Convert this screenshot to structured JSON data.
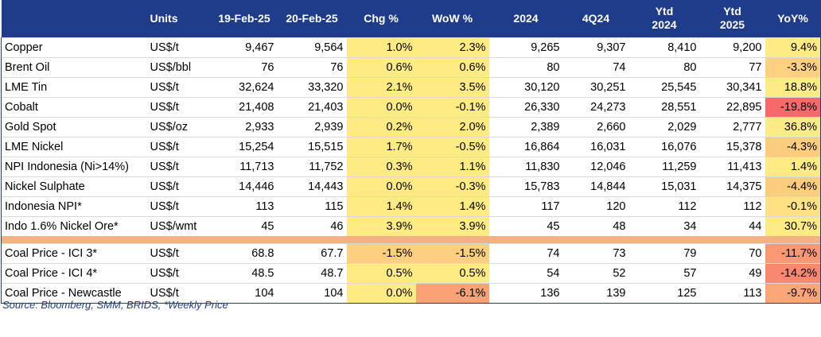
{
  "headers": [
    "",
    "Units",
    "19-Feb-25",
    "20-Feb-25",
    "Chg %",
    "WoW %",
    "2024",
    "4Q24",
    "Ytd 2024",
    "Ytd 2025",
    "YoY%"
  ],
  "colors": {
    "header_bg": "#1f3c8b",
    "separator": "#f4b183",
    "yellow": "#ffeb84",
    "light_orange": "#ffd27f",
    "orange": "#fcb37b",
    "salmon": "#f8a275",
    "red": "#f8696b"
  },
  "rows": [
    {
      "name": "Copper",
      "unit": "US$/t",
      "v1": "9,467",
      "v2": "9,564",
      "chg": "1.0%",
      "wow": "2.3%",
      "y2024": "9,265",
      "q4": "9,307",
      "ytd24": "8,410",
      "ytd25": "9,200",
      "yoy": "9.4%",
      "chg_color": "#ffeb84",
      "wow_color": "#ffeb84",
      "yoy_color": "#ffeb84"
    },
    {
      "name": "Brent Oil",
      "unit": "US$/bbl",
      "v1": "76",
      "v2": "76",
      "chg": "0.6%",
      "wow": "0.6%",
      "y2024": "80",
      "q4": "74",
      "ytd24": "80",
      "ytd25": "77",
      "yoy": "-3.3%",
      "chg_color": "#ffeb84",
      "wow_color": "#ffeb84",
      "yoy_color": "#fdd17f"
    },
    {
      "name": "LME Tin",
      "unit": "US$/t",
      "v1": "32,624",
      "v2": "33,320",
      "chg": "2.1%",
      "wow": "3.5%",
      "y2024": "30,120",
      "q4": "30,251",
      "ytd24": "25,545",
      "ytd25": "30,341",
      "yoy": "18.8%",
      "chg_color": "#ffeb84",
      "wow_color": "#ffeb84",
      "yoy_color": "#ffeb84"
    },
    {
      "name": "Cobalt",
      "unit": "US$/t",
      "v1": "21,408",
      "v2": "21,403",
      "chg": "0.0%",
      "wow": "-0.1%",
      "y2024": "26,330",
      "q4": "24,273",
      "ytd24": "28,551",
      "ytd25": "22,895",
      "yoy": "-19.8%",
      "chg_color": "#ffeb84",
      "wow_color": "#ffeb84",
      "yoy_color": "#f8696b"
    },
    {
      "name": "Gold Spot",
      "unit": "US$/oz",
      "v1": "2,933",
      "v2": "2,939",
      "chg": "0.2%",
      "wow": "2.0%",
      "y2024": "2,389",
      "q4": "2,660",
      "ytd24": "2,029",
      "ytd25": "2,777",
      "yoy": "36.8%",
      "chg_color": "#ffeb84",
      "wow_color": "#ffeb84",
      "yoy_color": "#ffeb84"
    },
    {
      "name": "LME Nickel",
      "unit": "US$/t",
      "v1": "15,254",
      "v2": "15,515",
      "chg": "1.7%",
      "wow": "-0.5%",
      "y2024": "16,864",
      "q4": "16,031",
      "ytd24": "16,076",
      "ytd25": "15,378",
      "yoy": "-4.3%",
      "chg_color": "#ffeb84",
      "wow_color": "#ffeb84",
      "yoy_color": "#fdcd7e"
    },
    {
      "name": "NPI Indonesia (Ni>14%)",
      "unit": "US$/t",
      "v1": "11,713",
      "v2": "11,752",
      "chg": "0.3%",
      "wow": "1.1%",
      "y2024": "11,830",
      "q4": "12,046",
      "ytd24": "11,259",
      "ytd25": "11,413",
      "yoy": "1.4%",
      "chg_color": "#ffeb84",
      "wow_color": "#ffeb84",
      "yoy_color": "#ffeb84"
    },
    {
      "name": "Nickel Sulphate",
      "unit": "US$/t",
      "v1": "14,446",
      "v2": "14,443",
      "chg": "0.0%",
      "wow": "-0.3%",
      "y2024": "15,783",
      "q4": "14,844",
      "ytd24": "15,031",
      "ytd25": "14,375",
      "yoy": "-4.4%",
      "chg_color": "#ffeb84",
      "wow_color": "#ffeb84",
      "yoy_color": "#fdcd7e"
    },
    {
      "name": "Indonesia NPI*",
      "unit": "US$/t",
      "v1": "113",
      "v2": "115",
      "chg": "1.4%",
      "wow": "1.4%",
      "y2024": "117",
      "q4": "120",
      "ytd24": "112",
      "ytd25": "112",
      "yoy": "-0.1%",
      "chg_color": "#ffeb84",
      "wow_color": "#ffeb84",
      "yoy_color": "#ffe283"
    },
    {
      "name": "Indo 1.6% Nickel Ore*",
      "unit": "US$/wmt",
      "v1": "45",
      "v2": "46",
      "chg": "3.9%",
      "wow": "3.9%",
      "y2024": "45",
      "q4": "48",
      "ytd24": "34",
      "ytd25": "44",
      "yoy": "30.7%",
      "chg_color": "#ffeb84",
      "wow_color": "#ffeb84",
      "yoy_color": "#ffeb84"
    }
  ],
  "coal_rows": [
    {
      "name": "Coal Price - ICI 3*",
      "unit": "US$/t",
      "v1": "68.8",
      "v2": "67.7",
      "chg": "-1.5%",
      "wow": "-1.5%",
      "y2024": "74",
      "q4": "73",
      "ytd24": "79",
      "ytd25": "70",
      "yoy": "-11.7%",
      "chg_color": "#fdd07f",
      "wow_color": "#fdd07f",
      "yoy_color": "#fa9874"
    },
    {
      "name": "Coal Price - ICI 4*",
      "unit": "US$/t",
      "v1": "48.5",
      "v2": "48.7",
      "chg": "0.5%",
      "wow": "0.5%",
      "y2024": "54",
      "q4": "52",
      "ytd24": "57",
      "ytd25": "49",
      "yoy": "-14.2%",
      "chg_color": "#ffeb84",
      "wow_color": "#ffeb84",
      "yoy_color": "#f98870"
    },
    {
      "name": "Coal Price - Newcastle",
      "unit": "US$/t",
      "v1": "104",
      "v2": "104",
      "chg": "0.0%",
      "wow": "-6.1%",
      "y2024": "136",
      "q4": "139",
      "ytd24": "125",
      "ytd25": "113",
      "yoy": "-9.7%",
      "chg_color": "#ffeb84",
      "wow_color": "#f8a275",
      "yoy_color": "#fba677"
    }
  ],
  "source": "Source: Bloomberg, SMM, BRIDS, *Weekly Price"
}
